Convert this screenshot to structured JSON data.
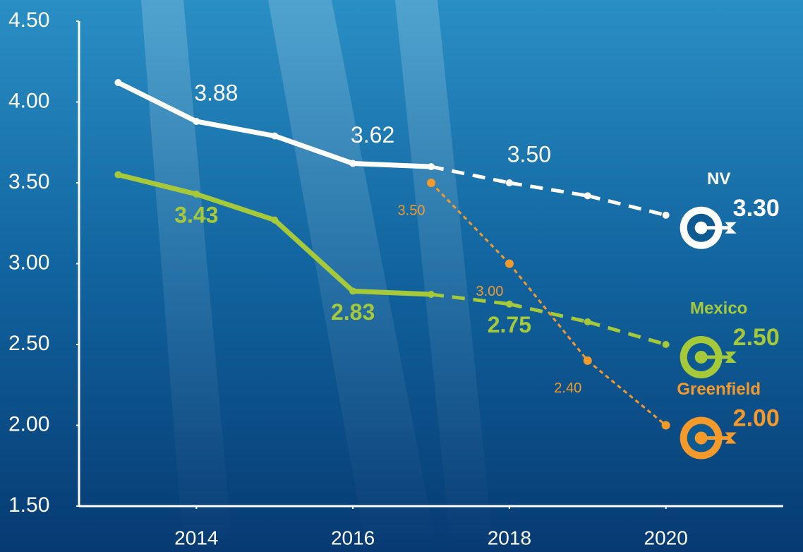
{
  "chart_data": {
    "type": "line",
    "x": [
      2013,
      2014,
      2015,
      2016,
      2017,
      2018,
      2019,
      2020
    ],
    "xlim": [
      2012.5,
      2021.5
    ],
    "xticks": [
      2014,
      2016,
      2018,
      2020
    ],
    "ylim": [
      1.5,
      4.5
    ],
    "yticks": [
      {
        "value": 1.5,
        "label": "1.50"
      },
      {
        "value": 2,
        "label": "2.00"
      },
      {
        "value": 2.5,
        "label": "2.50"
      },
      {
        "value": 3,
        "label": "3.00"
      },
      {
        "value": 3.5,
        "label": "3.50"
      },
      {
        "value": 4,
        "label": "4.00"
      },
      {
        "value": 4.5,
        "label": "4.50"
      }
    ],
    "projection_start": 2017,
    "series": [
      {
        "name": "NV",
        "color": "#ffffff",
        "values": [
          4.12,
          3.88,
          3.79,
          3.62,
          3.6,
          3.5,
          3.42,
          3.3
        ],
        "value_labels": [
          null,
          "3.88",
          null,
          "3.62",
          null,
          "3.50",
          null,
          "3.30"
        ]
      },
      {
        "name": "Mexico",
        "color": "#a6c93a",
        "values": [
          3.55,
          3.43,
          3.27,
          2.83,
          2.81,
          2.75,
          2.64,
          2.5
        ],
        "value_labels": [
          null,
          "3.43",
          null,
          "2.83",
          null,
          "2.75",
          null,
          "2.50"
        ]
      },
      {
        "name": "Greenfield",
        "color": "#f39a2b",
        "values": [
          null,
          null,
          null,
          null,
          3.5,
          3.0,
          2.4,
          2.0
        ],
        "value_labels": [
          null,
          null,
          null,
          null,
          "3.50",
          "3.00",
          "2.40",
          "2.00"
        ]
      }
    ]
  }
}
